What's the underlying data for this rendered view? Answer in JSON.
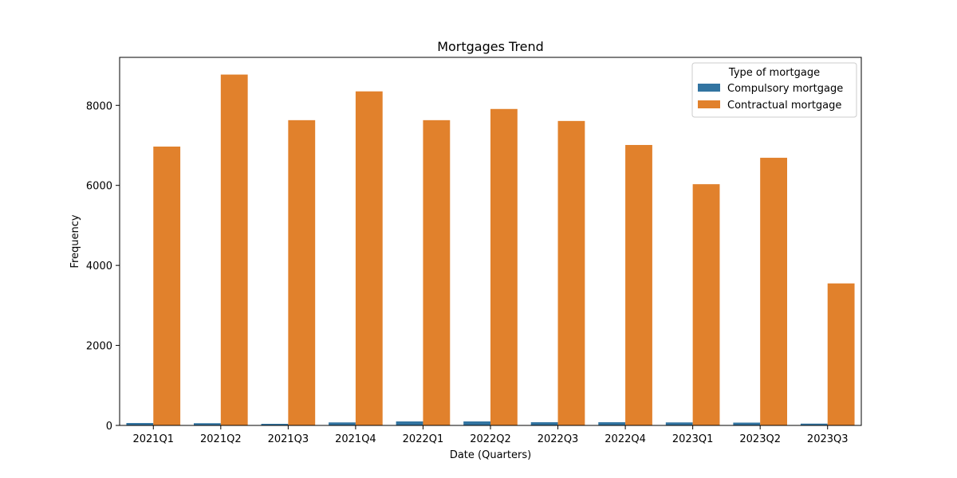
{
  "chart_data": {
    "type": "bar",
    "title": "Mortgages Trend",
    "xlabel": "Date (Quarters)",
    "ylabel": "Frequency",
    "ylim": [
      0,
      9200
    ],
    "yticks": [
      0,
      2000,
      4000,
      6000,
      8000
    ],
    "grid": false,
    "legend": {
      "title": "Type of mortgage",
      "placement": "top-right"
    },
    "categories": [
      "2021Q1",
      "2021Q2",
      "2021Q3",
      "2021Q4",
      "2022Q1",
      "2022Q2",
      "2022Q3",
      "2022Q4",
      "2023Q1",
      "2023Q2",
      "2023Q3"
    ],
    "series": [
      {
        "name": "Compulsory mortgage",
        "color": "#3274a1",
        "values": [
          60,
          55,
          40,
          75,
          100,
          100,
          80,
          80,
          75,
          70,
          45
        ]
      },
      {
        "name": "Contractual mortgage",
        "color": "#e1812c",
        "values": [
          6970,
          8770,
          7630,
          8350,
          7630,
          7910,
          7610,
          7010,
          6030,
          6690,
          3550
        ]
      }
    ]
  }
}
